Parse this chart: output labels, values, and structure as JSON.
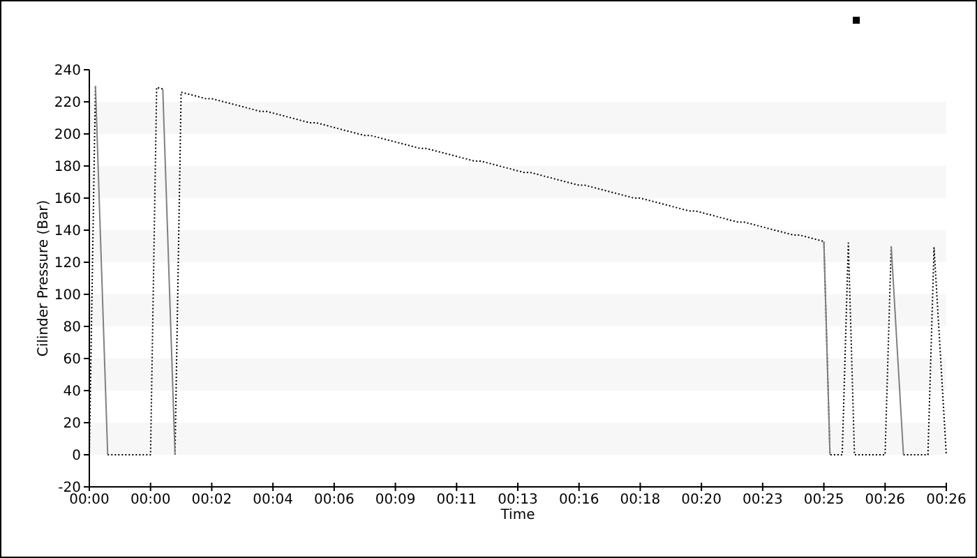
{
  "chart_data": {
    "type": "line",
    "xlabel": "Time",
    "ylabel": "Cilinder Pressure (Bar)",
    "categories": [
      "00:00",
      null,
      null,
      null,
      null,
      null,
      null,
      null,
      null,
      null,
      "00:00",
      null,
      null,
      null,
      null,
      null,
      null,
      null,
      null,
      null,
      "00:02",
      null,
      null,
      null,
      null,
      null,
      null,
      null,
      null,
      null,
      "00:04",
      null,
      null,
      null,
      null,
      null,
      null,
      null,
      null,
      null,
      "00:06",
      null,
      null,
      null,
      null,
      null,
      null,
      null,
      null,
      null,
      "00:09",
      null,
      null,
      null,
      null,
      null,
      null,
      null,
      null,
      null,
      "00:11",
      null,
      null,
      null,
      null,
      null,
      null,
      null,
      null,
      null,
      "00:13",
      null,
      null,
      null,
      null,
      null,
      null,
      null,
      null,
      null,
      "00:16",
      null,
      null,
      null,
      null,
      null,
      null,
      null,
      null,
      null,
      "00:18",
      null,
      null,
      null,
      null,
      null,
      null,
      null,
      null,
      null,
      "00:20",
      null,
      null,
      null,
      null,
      null,
      null,
      null,
      null,
      null,
      "00:23",
      null,
      null,
      null,
      null,
      null,
      null,
      null,
      null,
      null,
      "00:25",
      null,
      null,
      null,
      null,
      null,
      null,
      null,
      null,
      null,
      "00:26",
      null,
      null,
      null,
      null,
      null,
      null,
      null,
      null,
      null,
      "00:26"
    ],
    "ylim": [
      -20,
      240
    ],
    "yticks": [
      -20,
      0,
      20,
      40,
      60,
      80,
      100,
      120,
      140,
      160,
      180,
      200,
      220,
      240
    ],
    "bands": [
      {
        "axis": "y",
        "from": 0,
        "to": 20,
        "color": "#f7f7f7"
      },
      {
        "axis": "y",
        "from": 40,
        "to": 60,
        "color": "#f7f7f7"
      },
      {
        "axis": "y",
        "from": 80,
        "to": 100,
        "color": "#f7f7f7"
      },
      {
        "axis": "y",
        "from": 120,
        "to": 140,
        "color": "#f7f7f7"
      },
      {
        "axis": "y",
        "from": 160,
        "to": 180,
        "color": "#f7f7f7"
      },
      {
        "axis": "y",
        "from": 200,
        "to": 220,
        "color": "#f7f7f7"
      }
    ],
    "series": [
      {
        "color": "#000000",
        "line_style": "dotted",
        "values": [
          0,
          230,
          null,
          0,
          0,
          0,
          0,
          0,
          0,
          0,
          0,
          229,
          228,
          null,
          0,
          226,
          225,
          224,
          223,
          222,
          222,
          221,
          220,
          219,
          218,
          217,
          216,
          215,
          214,
          214,
          213,
          212,
          211,
          210,
          209,
          208,
          207,
          207,
          206,
          205,
          204,
          203,
          202,
          201,
          200,
          199,
          199,
          198,
          197,
          196,
          195,
          194,
          193,
          192,
          191,
          191,
          190,
          189,
          188,
          187,
          186,
          185,
          184,
          183,
          183,
          182,
          181,
          180,
          179,
          178,
          177,
          176,
          176,
          175,
          174,
          173,
          172,
          171,
          170,
          169,
          168,
          168,
          167,
          166,
          165,
          164,
          163,
          162,
          161,
          160,
          160,
          159,
          158,
          157,
          156,
          155,
          154,
          153,
          152,
          152,
          151,
          150,
          149,
          148,
          147,
          146,
          145,
          145,
          144,
          143,
          142,
          141,
          140,
          139,
          138,
          137,
          137,
          136,
          135,
          134,
          133,
          0,
          0,
          0,
          132,
          0,
          0,
          0,
          0,
          0,
          0,
          130,
          null,
          0,
          0,
          0,
          0,
          0,
          129,
          65,
          0
        ]
      },
      {
        "color": "#808080",
        "line_style": "solid",
        "values": [
          null,
          230,
          115,
          0,
          null,
          null,
          null,
          null,
          null,
          null,
          null,
          null,
          228,
          114,
          0,
          null,
          null,
          null,
          null,
          null,
          null,
          null,
          null,
          null,
          null,
          null,
          null,
          null,
          null,
          null,
          null,
          null,
          null,
          null,
          null,
          null,
          null,
          null,
          null,
          null,
          null,
          null,
          null,
          null,
          null,
          null,
          null,
          null,
          null,
          null,
          null,
          null,
          null,
          null,
          null,
          null,
          null,
          null,
          null,
          null,
          null,
          null,
          null,
          null,
          null,
          null,
          null,
          null,
          null,
          null,
          null,
          null,
          null,
          null,
          null,
          null,
          null,
          null,
          null,
          null,
          null,
          null,
          null,
          null,
          null,
          null,
          null,
          null,
          null,
          null,
          null,
          null,
          null,
          null,
          null,
          null,
          null,
          null,
          null,
          null,
          null,
          null,
          null,
          null,
          null,
          null,
          null,
          null,
          null,
          null,
          null,
          null,
          null,
          null,
          null,
          null,
          null,
          null,
          null,
          null,
          133,
          0,
          null,
          null,
          null,
          null,
          null,
          null,
          null,
          null,
          null,
          130,
          65,
          0,
          null,
          null,
          null,
          null,
          null,
          null,
          null
        ]
      }
    ]
  }
}
